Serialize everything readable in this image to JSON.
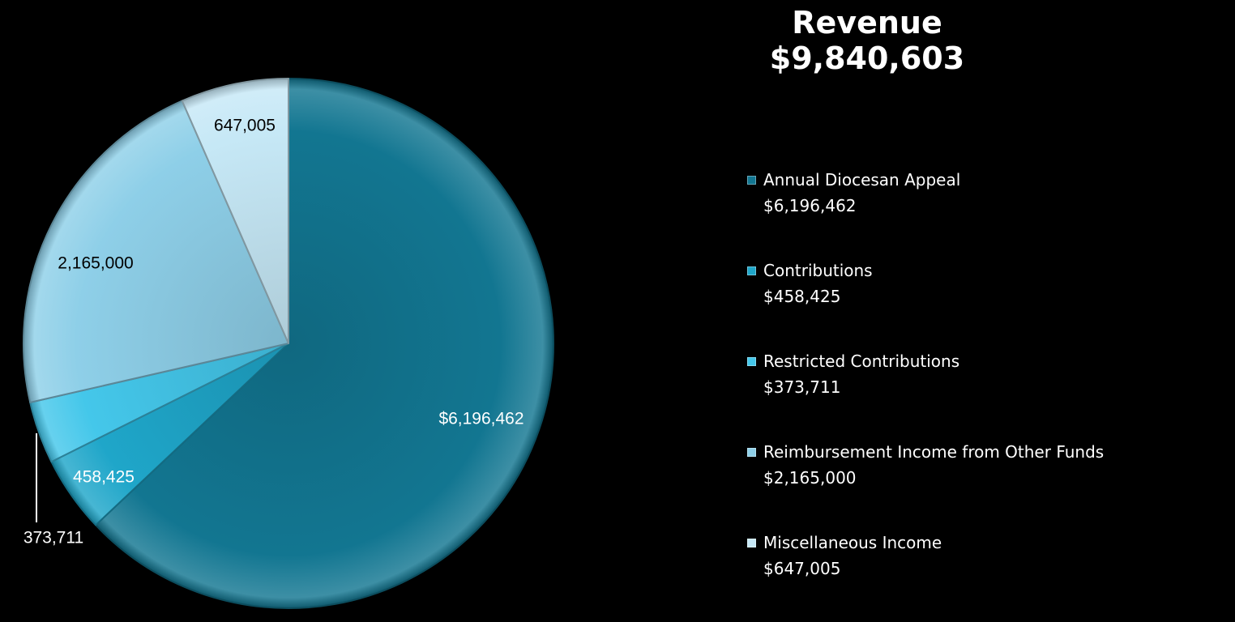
{
  "header": {
    "title": "Revenue",
    "total": "$9,840,603"
  },
  "colors": {
    "background": "#000000",
    "annual_diocesan_appeal": "#127691",
    "contributions": "#1fa6c9",
    "restricted_contributions": "#44c7ea",
    "reimbursement_income": "#8ecfe8",
    "miscellaneous_income": "#c6e8f6"
  },
  "chart_data": {
    "type": "pie",
    "title": "Revenue",
    "subtitle": "$9,840,603",
    "legend_position": "right",
    "slices": [
      {
        "name": "Annual Diocesan Appeal",
        "value": 6196462,
        "label": "$6,196,462",
        "legend_value": "$6,196,462",
        "color": "#127691",
        "label_color": "#ffffff"
      },
      {
        "name": "Contributions",
        "value": 458425,
        "label": "458,425",
        "legend_value": "$458,425",
        "color": "#1fa6c9",
        "label_color": "#ffffff"
      },
      {
        "name": "Restricted Contributions",
        "value": 373711,
        "label": "373,711",
        "legend_value": "$373,711",
        "color": "#44c7ea",
        "label_color": "#ffffff"
      },
      {
        "name": "Reimbursement Income from Other Funds",
        "value": 2165000,
        "label": "2,165,000",
        "legend_value": "$2,165,000",
        "color": "#8ecfe8",
        "label_color": "#000000"
      },
      {
        "name": "Miscellaneous Income",
        "value": 647005,
        "label": "647,005",
        "legend_value": "$647,005",
        "color": "#c6e8f6",
        "label_color": "#000000"
      }
    ]
  }
}
